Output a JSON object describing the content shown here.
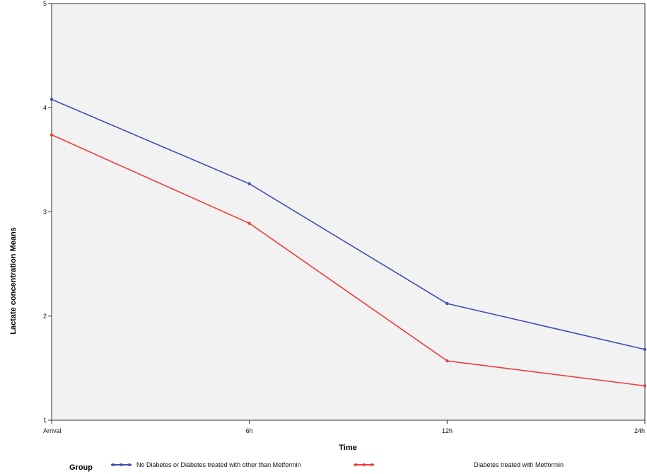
{
  "chart_data": {
    "type": "line",
    "categories": [
      "Arrival",
      "6h",
      "12h",
      "24h"
    ],
    "series": [
      {
        "name": "No Diabetes or Diabetes treated with other than Metformin",
        "values": [
          4.08,
          3.27,
          2.12,
          1.68
        ],
        "color": "#3f4fb5"
      },
      {
        "name": "Diabetes treated with Metformin",
        "values": [
          3.74,
          2.89,
          1.57,
          1.33
        ],
        "color": "#f03c3c"
      }
    ],
    "title": "",
    "xlabel": "Time",
    "ylabel": "Lactate concentration Means",
    "ylim": [
      1,
      5
    ],
    "yticks": [
      "1",
      "2",
      "3",
      "4",
      "5"
    ],
    "legend_title": "Group",
    "legend_position": "bottom",
    "grid": false,
    "plot_background": "#f2f2f2"
  }
}
